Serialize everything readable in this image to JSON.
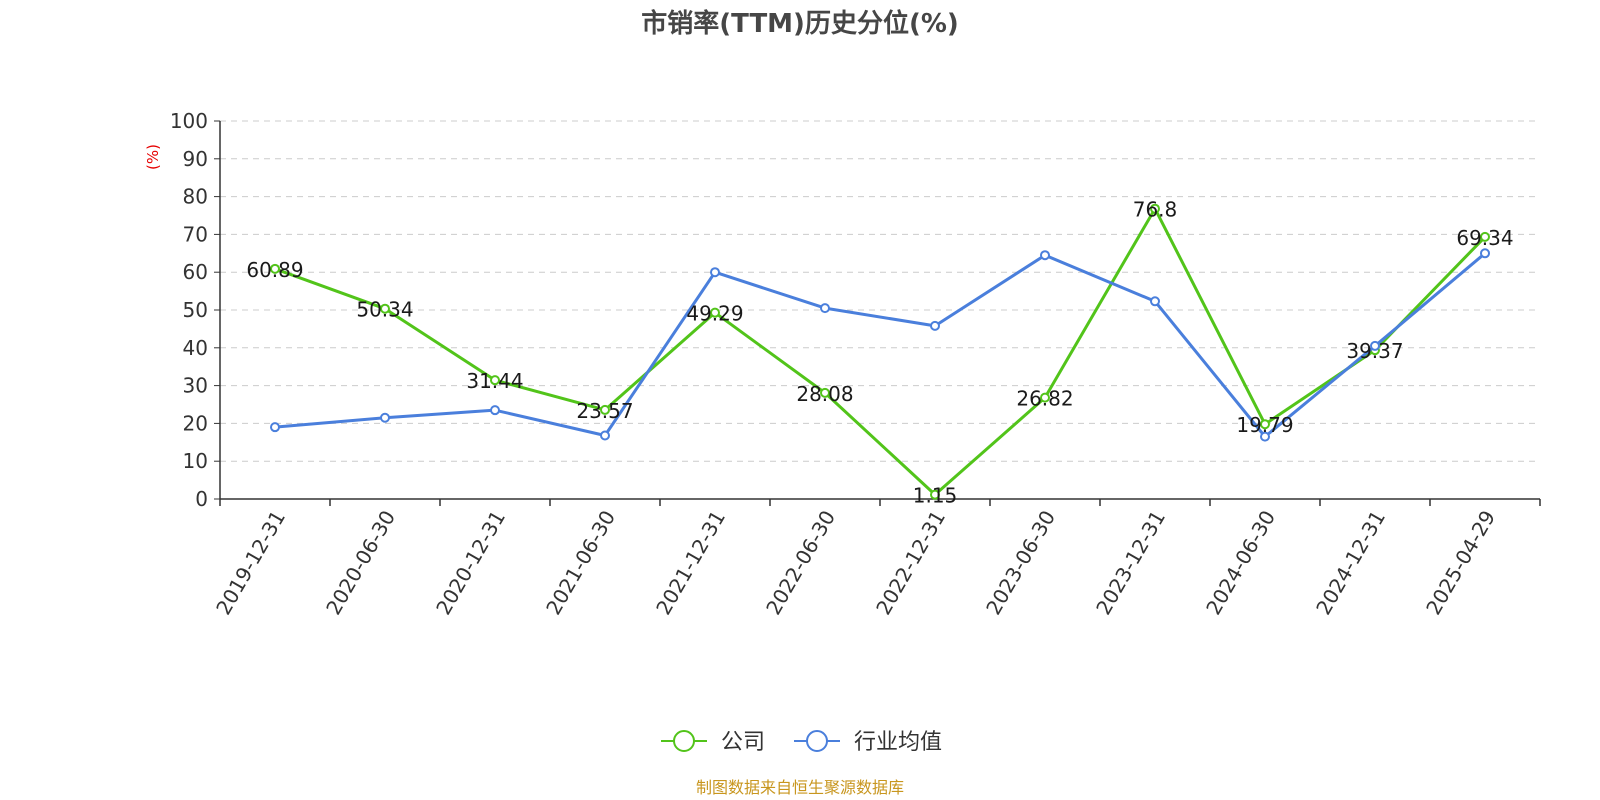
{
  "chart_data": {
    "type": "line",
    "title": "市销率(TTM)历史分位(%)",
    "ylabel": "(%)",
    "ylim": [
      0,
      100
    ],
    "yticks": [
      "0",
      "10",
      "20",
      "30",
      "40",
      "50",
      "60",
      "70",
      "80",
      "90",
      "100"
    ],
    "grid": true,
    "legend_position": "bottom",
    "categories": [
      "2019-12-31",
      "2020-06-30",
      "2020-12-31",
      "2021-06-30",
      "2021-12-31",
      "2022-06-30",
      "2022-12-31",
      "2023-06-30",
      "2023-12-31",
      "2024-06-30",
      "2024-12-31",
      "2025-04-29"
    ],
    "series": [
      {
        "name": "公司",
        "color": "#52c41a",
        "values": [
          60.89,
          50.34,
          31.44,
          23.57,
          49.29,
          28.08,
          1.15,
          26.82,
          76.8,
          19.79,
          39.37,
          69.34
        ],
        "labels": [
          "60.89",
          "50.34",
          "31.44",
          "23.57",
          "49.29",
          "28.08",
          "1.15",
          "26.82",
          "76.8",
          "19.79",
          "39.37",
          "69.34"
        ]
      },
      {
        "name": "行业均值",
        "color": "#4a7fdc",
        "values": [
          19.0,
          21.5,
          23.5,
          16.8,
          60.0,
          50.5,
          45.8,
          64.5,
          52.3,
          16.5,
          40.5,
          65.0
        ]
      }
    ]
  },
  "source_text": "制图数据来自恒生聚源数据库"
}
